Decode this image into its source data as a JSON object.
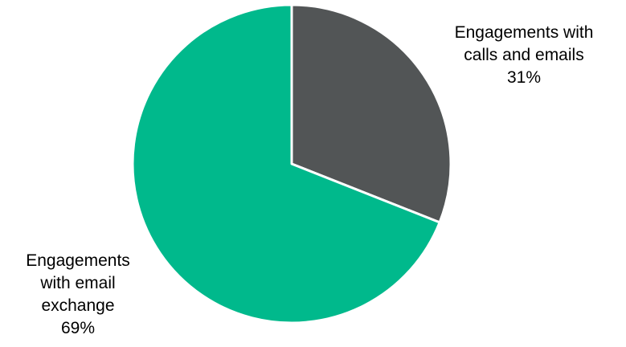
{
  "chart_data": {
    "type": "pie",
    "title": "",
    "slices": [
      {
        "label_lines": [
          "Engagements with",
          "calls and emails"
        ],
        "value": 31,
        "value_label": "31%",
        "color": "#525556"
      },
      {
        "label_lines": [
          "Engagements",
          "with email",
          "exchange"
        ],
        "value": 69,
        "value_label": "69%",
        "color": "#00b98c"
      }
    ],
    "start_angle_deg": 0,
    "direction": "clockwise",
    "separator_color": "#ffffff",
    "legend": "none"
  }
}
